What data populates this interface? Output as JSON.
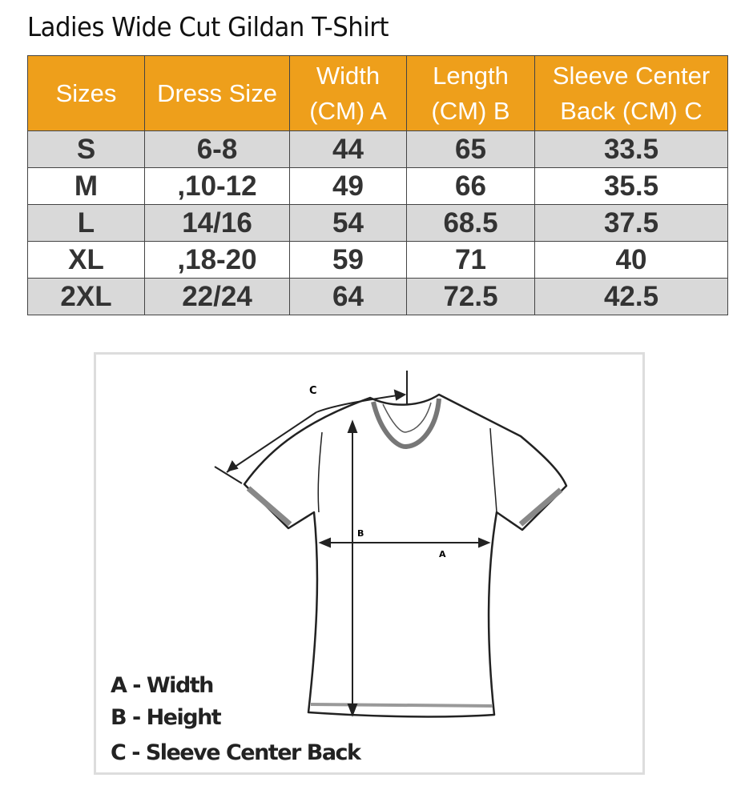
{
  "title": "Ladies Wide Cut Gildan T-Shirt",
  "table": {
    "headers": [
      "Sizes",
      "Dress Size",
      "Width (CM) A",
      "Length (CM) B",
      "Sleeve Center Back (CM) C"
    ],
    "header_color": "#EE9F1B",
    "stripe_color": "#D9D9D9",
    "rows": [
      [
        "S",
        "6-8",
        "44",
        "65",
        "33.5"
      ],
      [
        "M",
        ",10-12",
        "49",
        "66",
        "35.5"
      ],
      [
        "L",
        "14/16",
        "54",
        "68.5",
        "37.5"
      ],
      [
        "XL",
        ",18-20",
        "59",
        "71",
        "40"
      ],
      [
        "2XL",
        "22/24",
        "64",
        "72.5",
        "42.5"
      ]
    ]
  },
  "diagram": {
    "labels": {
      "a": "A",
      "b": "B",
      "c": "C"
    },
    "legend": [
      "A - Width",
      "B - Height",
      "C - Sleeve Center Back"
    ]
  }
}
